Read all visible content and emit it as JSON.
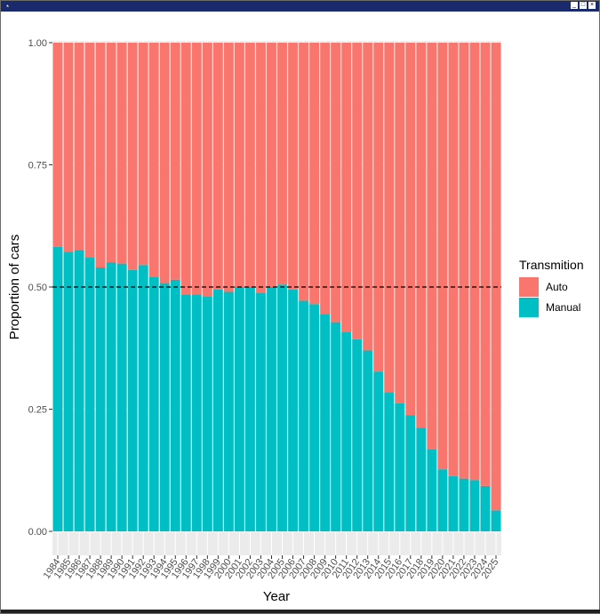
{
  "window": {
    "title": ""
  },
  "chart_data": {
    "type": "bar",
    "stacked": true,
    "x": [
      1984,
      1985,
      1986,
      1987,
      1988,
      1989,
      1990,
      1991,
      1992,
      1993,
      1994,
      1995,
      1996,
      1997,
      1998,
      1999,
      2000,
      2001,
      2002,
      2003,
      2004,
      2005,
      2006,
      2007,
      2008,
      2009,
      2010,
      2011,
      2012,
      2013,
      2014,
      2015,
      2016,
      2017,
      2018,
      2019,
      2020,
      2021,
      2022,
      2023,
      2024,
      2025
    ],
    "series": [
      {
        "name": "Manual",
        "color": "#00BFC4",
        "values": [
          0.582,
          0.572,
          0.576,
          0.56,
          0.54,
          0.55,
          0.548,
          0.535,
          0.545,
          0.52,
          0.508,
          0.515,
          0.485,
          0.485,
          0.48,
          0.495,
          0.49,
          0.5,
          0.5,
          0.488,
          0.5,
          0.505,
          0.495,
          0.472,
          0.465,
          0.445,
          0.428,
          0.408,
          0.393,
          0.37,
          0.327,
          0.285,
          0.262,
          0.238,
          0.212,
          0.168,
          0.127,
          0.113,
          0.108,
          0.105,
          0.093,
          0.043
        ]
      },
      {
        "name": "Auto",
        "color": "#F8766D",
        "values": [
          0.418,
          0.428,
          0.424,
          0.44,
          0.46,
          0.45,
          0.452,
          0.465,
          0.455,
          0.48,
          0.492,
          0.485,
          0.515,
          0.515,
          0.52,
          0.505,
          0.51,
          0.5,
          0.5,
          0.512,
          0.5,
          0.495,
          0.505,
          0.528,
          0.535,
          0.555,
          0.572,
          0.592,
          0.607,
          0.63,
          0.673,
          0.715,
          0.738,
          0.762,
          0.788,
          0.832,
          0.873,
          0.887,
          0.892,
          0.895,
          0.907,
          0.957
        ]
      }
    ],
    "xlabel": "Year",
    "ylabel": "Proportion of cars",
    "ylim": [
      0,
      1
    ],
    "yticks": [
      "0.00",
      "0.25",
      "0.50",
      "0.75",
      "1.00"
    ],
    "reference_line": {
      "y": 0.5,
      "style": "dashed"
    },
    "legend": {
      "title": "Transmition",
      "position": "right",
      "entries": [
        "Auto",
        "Manual"
      ]
    },
    "grid": true,
    "panel_background": "#EBEBEB"
  }
}
